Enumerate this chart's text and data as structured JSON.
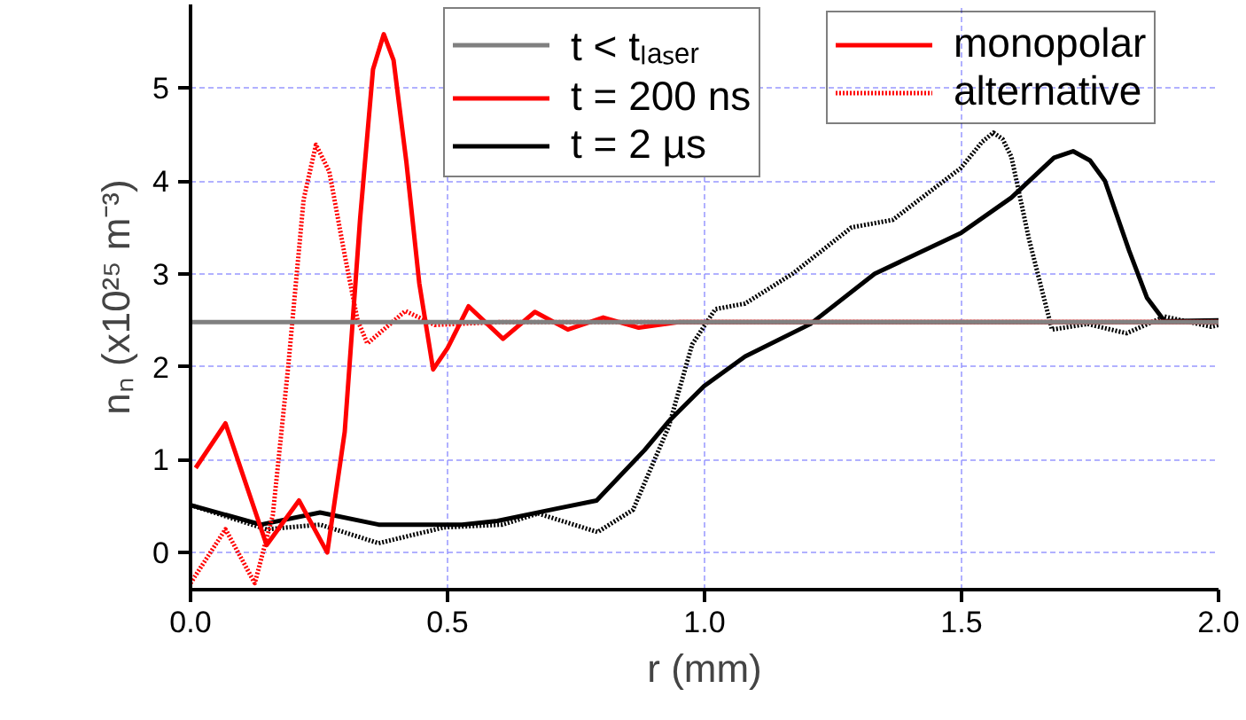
{
  "chart_data": {
    "type": "line",
    "xlabel": "r (mm)",
    "ylabel": "nₙ (x10²⁵ m⁻³)",
    "xlim": [
      0,
      2.0
    ],
    "ylim": [
      -0.4,
      5.9
    ],
    "xticks": [
      {
        "value": 0,
        "label": "0.0"
      },
      0.5,
      {
        "value": 1,
        "label": "1.0"
      },
      1.5,
      {
        "value": 2,
        "label": "2.0"
      }
    ],
    "yticks": [
      0,
      1,
      2,
      3,
      4,
      5
    ],
    "grid": true,
    "legend": "top",
    "annotations": [
      "monopolar",
      "alternative"
    ],
    "series": [
      {
        "name": "t < tₗₐₛₑᵣ",
        "color": "#808080",
        "line_style": "solid",
        "x": [
          0,
          2.0
        ],
        "values": [
          2.48,
          2.48
        ]
      },
      {
        "name": "t = 200 ns",
        "color": "#ff0000",
        "line_style": "solid",
        "x": [
          0.01,
          0.068,
          0.148,
          0.211,
          0.266,
          0.3,
          0.33,
          0.355,
          0.376,
          0.395,
          0.42,
          0.445,
          0.472,
          0.5,
          0.541,
          0.608,
          0.67,
          0.734,
          0.803,
          0.872,
          0.95,
          2.0
        ],
        "values": [
          0.91,
          1.39,
          0.08,
          0.56,
          0.0,
          1.3,
          3.6,
          5.2,
          5.58,
          5.3,
          4.2,
          2.9,
          1.97,
          2.2,
          2.65,
          2.3,
          2.59,
          2.4,
          2.53,
          2.42,
          2.48,
          2.48
        ]
      },
      {
        "color": "#ff0000",
        "line_style": "dotted",
        "x": [
          0.0,
          0.068,
          0.125,
          0.16,
          0.19,
          0.22,
          0.244,
          0.27,
          0.3,
          0.325,
          0.344,
          0.418,
          0.475,
          0.6,
          2.0
        ],
        "values": [
          -0.33,
          0.25,
          -0.33,
          0.4,
          2.0,
          3.8,
          4.39,
          4.1,
          3.2,
          2.5,
          2.25,
          2.6,
          2.45,
          2.48,
          2.48
        ]
      },
      {
        "name": "t = 2 µs",
        "color": "#000000",
        "line_style": "solid",
        "x": [
          0.0,
          0.137,
          0.252,
          0.366,
          0.528,
          0.597,
          0.71,
          0.79,
          0.883,
          0.93,
          0.999,
          1.079,
          1.206,
          1.331,
          1.499,
          1.597,
          1.68,
          1.717,
          1.75,
          1.779,
          1.826,
          1.861,
          1.895,
          2.0
        ],
        "values": [
          0.51,
          0.3,
          0.43,
          0.3,
          0.3,
          0.34,
          0.47,
          0.56,
          1.1,
          1.41,
          1.79,
          2.11,
          2.46,
          3.0,
          3.44,
          3.82,
          4.25,
          4.32,
          4.22,
          4.0,
          3.25,
          2.74,
          2.49,
          2.5
        ]
      },
      {
        "color": "#000000",
        "line_style": "dotted",
        "x": [
          0.0,
          0.148,
          0.252,
          0.366,
          0.493,
          0.607,
          0.676,
          0.792,
          0.861,
          0.93,
          0.976,
          1.021,
          1.079,
          1.171,
          1.286,
          1.366,
          1.499,
          1.54,
          1.562,
          1.58,
          1.597,
          1.631,
          1.676,
          1.745,
          1.821,
          1.895,
          1.986,
          2.0
        ],
        "values": [
          0.51,
          0.25,
          0.3,
          0.1,
          0.27,
          0.3,
          0.42,
          0.22,
          0.46,
          1.35,
          2.24,
          2.62,
          2.68,
          3.0,
          3.5,
          3.58,
          4.14,
          4.42,
          4.52,
          4.45,
          4.26,
          3.38,
          2.4,
          2.46,
          2.36,
          2.54,
          2.43,
          2.45
        ]
      }
    ]
  }
}
